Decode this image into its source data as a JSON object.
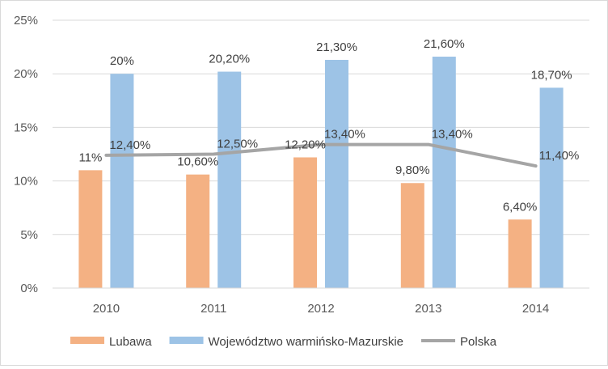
{
  "chart_data": {
    "type": "bar",
    "categories": [
      "2010",
      "2011",
      "2012",
      "2013",
      "2014"
    ],
    "series": [
      {
        "name": "Lubawa",
        "kind": "bar",
        "color": "#f4b183",
        "values": [
          11.0,
          10.6,
          12.2,
          9.8,
          6.4
        ],
        "labels": [
          "11%",
          "10,60%",
          "12,20%",
          "9,80%",
          "6,40%"
        ]
      },
      {
        "name": "Województwo warmińsko-Mazurskie",
        "kind": "bar",
        "color": "#9dc3e6",
        "values": [
          20.0,
          20.2,
          21.3,
          21.6,
          18.7
        ],
        "labels": [
          "20%",
          "20,20%",
          "21,30%",
          "21,60%",
          "18,70%"
        ]
      },
      {
        "name": "Polska",
        "kind": "line",
        "color": "#a5a5a5",
        "values": [
          12.4,
          12.5,
          13.4,
          13.4,
          11.4
        ],
        "labels": [
          "12,40%",
          "12,50%",
          "13,40%",
          "13,40%",
          "11,40%"
        ]
      }
    ],
    "ylim": [
      0,
      25
    ],
    "yticks": [
      0,
      5,
      10,
      15,
      20,
      25
    ],
    "ytick_labels": [
      "0%",
      "5%",
      "10%",
      "15%",
      "20%",
      "25%"
    ],
    "grid": true,
    "legend": "bottom",
    "title": "",
    "xlabel": "",
    "ylabel": ""
  }
}
